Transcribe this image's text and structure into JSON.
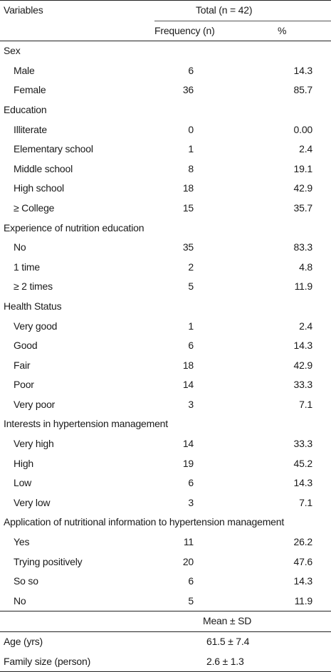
{
  "header": {
    "variables": "Variables",
    "total": "Total (n = 42)",
    "frequency": "Frequency (n)",
    "percent": "%"
  },
  "groups": [
    {
      "title": "Sex",
      "rows": [
        {
          "label": "Male",
          "n": "6",
          "pct": "14.3"
        },
        {
          "label": "Female",
          "n": "36",
          "pct": "85.7"
        }
      ]
    },
    {
      "title": "Education",
      "rows": [
        {
          "label": "Illiterate",
          "n": "0",
          "pct": "0.00"
        },
        {
          "label": "Elementary school",
          "n": "1",
          "pct": "2.4"
        },
        {
          "label": "Middle school",
          "n": "8",
          "pct": "19.1"
        },
        {
          "label": "High school",
          "n": "18",
          "pct": "42.9"
        },
        {
          "label": "≥ College",
          "n": "15",
          "pct": "35.7"
        }
      ]
    },
    {
      "title": "Experience of nutrition education",
      "rows": [
        {
          "label": "No",
          "n": "35",
          "pct": "83.3"
        },
        {
          "label": "1 time",
          "n": "2",
          "pct": "4.8"
        },
        {
          "label": "≥ 2 times",
          "n": "5",
          "pct": "11.9"
        }
      ]
    },
    {
      "title": "Health Status",
      "rows": [
        {
          "label": "Very good",
          "n": "1",
          "pct": "2.4"
        },
        {
          "label": "Good",
          "n": "6",
          "pct": "14.3"
        },
        {
          "label": "Fair",
          "n": "18",
          "pct": "42.9"
        },
        {
          "label": "Poor",
          "n": "14",
          "pct": "33.3"
        },
        {
          "label": "Very poor",
          "n": "3",
          "pct": "7.1"
        }
      ]
    },
    {
      "title": "Interests in hypertension management",
      "rows": [
        {
          "label": "Very high",
          "n": "14",
          "pct": "33.3"
        },
        {
          "label": "High",
          "n": "19",
          "pct": "45.2"
        },
        {
          "label": "Low",
          "n": "6",
          "pct": "14.3"
        },
        {
          "label": "Very low",
          "n": "3",
          "pct": "7.1"
        }
      ]
    },
    {
      "title": "Application of nutritional information to hypertension management",
      "rows": [
        {
          "label": "Yes",
          "n": "11",
          "pct": "26.2"
        },
        {
          "label": "Trying positively",
          "n": "20",
          "pct": "47.6"
        },
        {
          "label": "So so",
          "n": "6",
          "pct": "14.3"
        },
        {
          "label": "No",
          "n": "5",
          "pct": "11.9"
        }
      ]
    }
  ],
  "mean_section": {
    "header": "Mean ± SD",
    "rows": [
      {
        "label": "Age (yrs)",
        "value": "61.5 ± 7.4"
      },
      {
        "label": "Family size (person)",
        "value": "2.6 ± 1.3"
      }
    ]
  }
}
